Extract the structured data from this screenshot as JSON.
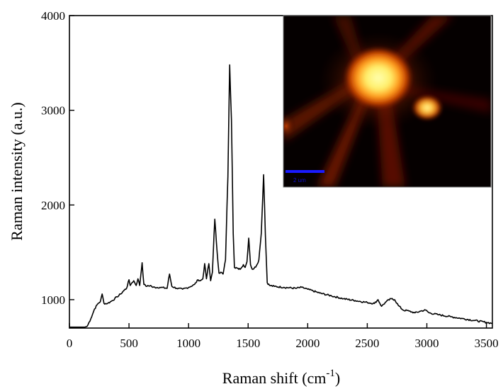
{
  "chart_data": {
    "type": "line",
    "xlabel": "Raman shift (cm",
    "xlabel_sup": "-1",
    "xlabel_close": ")",
    "ylabel": "Raman intensity (a.u.)",
    "xlim": [
      0,
      3550
    ],
    "ylim": [
      700,
      4000
    ],
    "xticks": [
      0,
      500,
      1000,
      1500,
      2000,
      2500,
      3000,
      3500
    ],
    "yticks": [
      1000,
      2000,
      3000,
      4000
    ],
    "grid": false,
    "series": [
      {
        "x": [
          0,
          130,
          150,
          180,
          210,
          240,
          260,
          275,
          290,
          320,
          360,
          400,
          430,
          460,
          480,
          500,
          510,
          525,
          540,
          560,
          575,
          590,
          610,
          625,
          650,
          680,
          700,
          760,
          820,
          840,
          860,
          900,
          950,
          1000,
          1050,
          1080,
          1100,
          1120,
          1135,
          1150,
          1170,
          1185,
          1200,
          1220,
          1240,
          1255,
          1270,
          1290,
          1310,
          1330,
          1345,
          1360,
          1375,
          1385,
          1400,
          1420,
          1440,
          1460,
          1475,
          1490,
          1505,
          1520,
          1535,
          1550,
          1570,
          1590,
          1610,
          1630,
          1645,
          1660,
          1680,
          1720,
          1800,
          1900,
          1950,
          2000,
          2100,
          2200,
          2300,
          2400,
          2500,
          2560,
          2590,
          2620,
          2660,
          2700,
          2730,
          2760,
          2800,
          2850,
          2900,
          2950,
          2990,
          3020,
          3100,
          3200,
          3300,
          3400,
          3500,
          3550
        ],
        "y": [
          710,
          710,
          720,
          800,
          900,
          960,
          980,
          1060,
          960,
          960,
          990,
          1030,
          1060,
          1100,
          1120,
          1210,
          1150,
          1180,
          1200,
          1150,
          1220,
          1150,
          1390,
          1160,
          1140,
          1150,
          1130,
          1130,
          1120,
          1270,
          1140,
          1120,
          1110,
          1130,
          1160,
          1210,
          1200,
          1220,
          1380,
          1220,
          1380,
          1200,
          1290,
          1850,
          1500,
          1280,
          1290,
          1270,
          1420,
          2300,
          3480,
          2900,
          1700,
          1340,
          1340,
          1320,
          1330,
          1370,
          1340,
          1400,
          1650,
          1370,
          1320,
          1330,
          1360,
          1420,
          1700,
          2320,
          1680,
          1180,
          1150,
          1140,
          1130,
          1120,
          1130,
          1110,
          1070,
          1040,
          1010,
          990,
          970,
          960,
          1000,
          930,
          980,
          1010,
          1000,
          940,
          890,
          880,
          860,
          880,
          890,
          860,
          840,
          820,
          800,
          780,
          760,
          750
        ]
      }
    ],
    "inset": {
      "type": "heatmap-image",
      "scalebar_label": "2 um",
      "colors": [
        "#000000",
        "#5a0a00",
        "#c23c00",
        "#ff9a1a",
        "#ffef6a",
        "#ffffb0"
      ]
    }
  }
}
